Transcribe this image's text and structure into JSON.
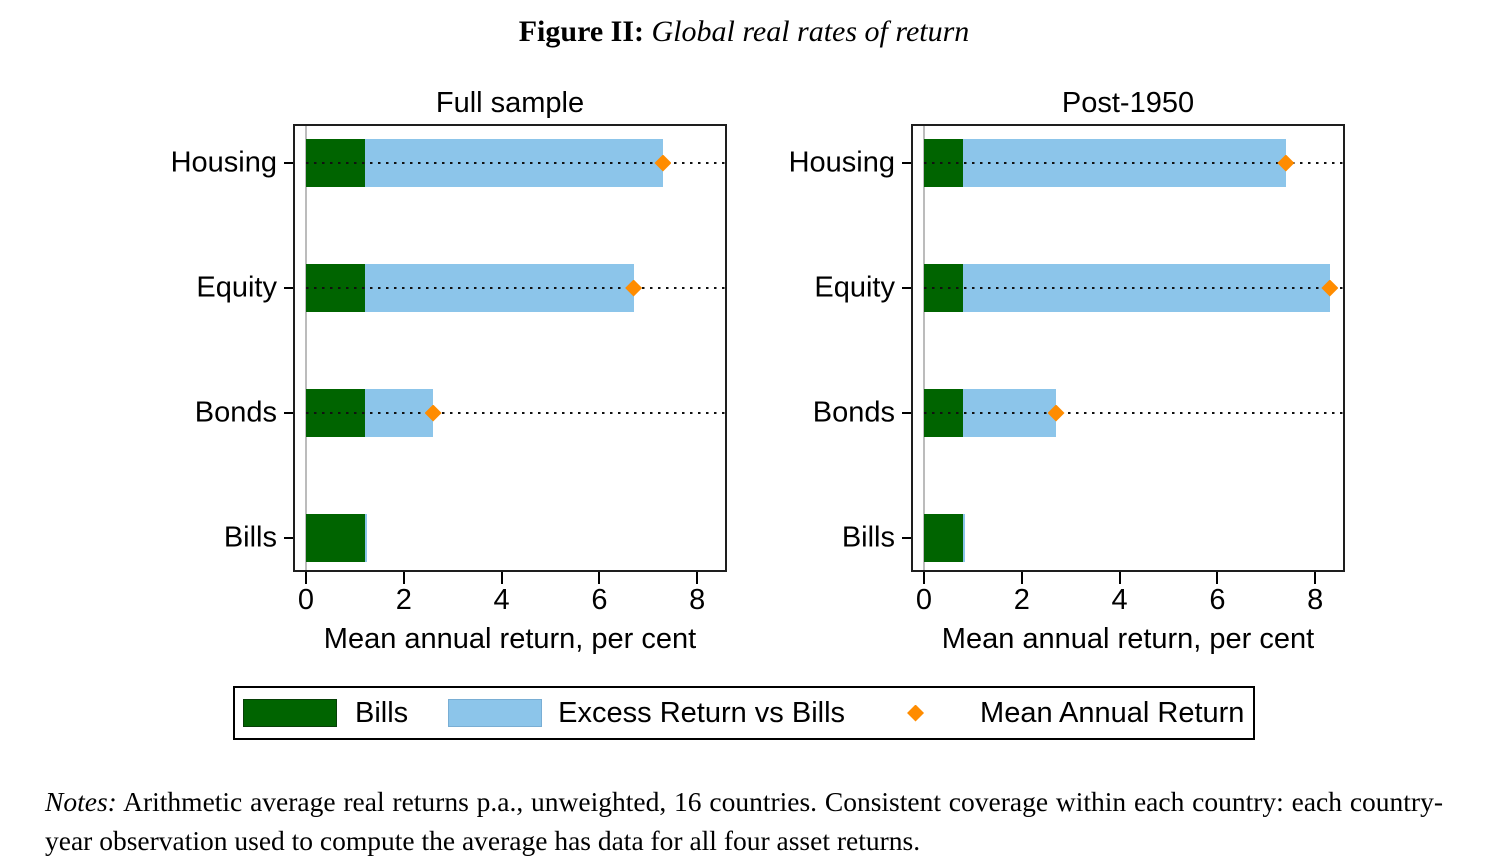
{
  "figure_title": {
    "prefix": "Figure II:",
    "text": "Global real rates of return"
  },
  "colors": {
    "bills": "#006400",
    "excess": "#8CC5EA",
    "marker": "#FF8C00"
  },
  "legend": {
    "items": [
      {
        "label": "Bills"
      },
      {
        "label": "Excess Return vs Bills"
      },
      {
        "label": "Mean Annual Return"
      }
    ]
  },
  "notes": {
    "label": "Notes:",
    "text": "Arithmetic average real returns p.a., unweighted, 16 countries. Consistent coverage within each country: each country-year observation used to compute the average has data for all four asset returns."
  },
  "chart_data": [
    {
      "type": "bar",
      "orientation": "horizontal",
      "title": "Full sample",
      "categories": [
        "Housing",
        "Equity",
        "Bonds",
        "Bills"
      ],
      "series": [
        {
          "name": "Bills",
          "values": [
            1.2,
            1.2,
            1.2,
            1.2
          ]
        },
        {
          "name": "Excess Return vs Bills",
          "values": [
            6.1,
            5.5,
            1.4,
            0
          ]
        }
      ],
      "markers": {
        "name": "Mean Annual Return",
        "values": [
          7.3,
          6.7,
          2.6,
          null
        ]
      },
      "xlabel": "Mean annual return, per cent",
      "xticks": [
        0,
        2,
        4,
        6,
        8
      ],
      "xlim": [
        -0.25,
        8.6
      ],
      "grid": "dotted horizontal guides on rows with markers"
    },
    {
      "type": "bar",
      "orientation": "horizontal",
      "title": "Post-1950",
      "categories": [
        "Housing",
        "Equity",
        "Bonds",
        "Bills"
      ],
      "series": [
        {
          "name": "Bills",
          "values": [
            0.8,
            0.8,
            0.8,
            0.8
          ]
        },
        {
          "name": "Excess Return vs Bills",
          "values": [
            6.6,
            7.5,
            1.9,
            0
          ]
        }
      ],
      "markers": {
        "name": "Mean Annual Return",
        "values": [
          7.4,
          8.3,
          2.7,
          null
        ]
      },
      "xlabel": "Mean annual return, per cent",
      "xticks": [
        0,
        2,
        4,
        6,
        8
      ],
      "xlim": [
        -0.25,
        8.6
      ],
      "grid": "dotted horizontal guides on rows with markers"
    }
  ]
}
